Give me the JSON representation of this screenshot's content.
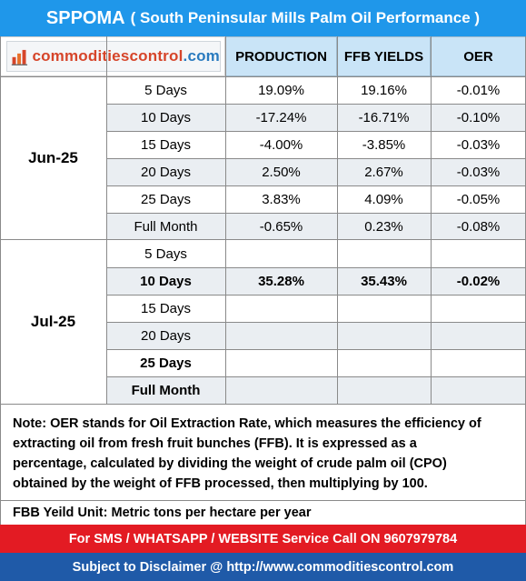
{
  "header": {
    "code": "SPPOMA",
    "subtitle": "( South Peninsular Mills Palm Oil Performance )"
  },
  "logo": {
    "text_a": "commodities",
    "text_b": "control",
    "text_c": ".com"
  },
  "columns": {
    "production": "PRODUCTION",
    "ffb": "FFB YIELDS",
    "oer": "OER"
  },
  "months": [
    {
      "label": "Jun-25",
      "rows": [
        {
          "period": "5 Days",
          "production": "19.09%",
          "ffb": "19.16%",
          "oer": "-0.01%"
        },
        {
          "period": "10 Days",
          "production": "-17.24%",
          "ffb": "-16.71%",
          "oer": "-0.10%"
        },
        {
          "period": "15 Days",
          "production": "-4.00%",
          "ffb": "-3.85%",
          "oer": "-0.03%"
        },
        {
          "period": "20 Days",
          "production": "2.50%",
          "ffb": "2.67%",
          "oer": "-0.03%"
        },
        {
          "period": "25 Days",
          "production": "3.83%",
          "ffb": "4.09%",
          "oer": "-0.05%"
        },
        {
          "period": "Full Month",
          "production": "-0.65%",
          "ffb": "0.23%",
          "oer": "-0.08%"
        }
      ]
    },
    {
      "label": "Jul-25",
      "rows": [
        {
          "period": "5 Days",
          "production": "",
          "ffb": "",
          "oer": ""
        },
        {
          "period": "10 Days",
          "production": "35.28%",
          "ffb": "35.43%",
          "oer": "-0.02%"
        },
        {
          "period": "15 Days",
          "production": "",
          "ffb": "",
          "oer": ""
        },
        {
          "period": "20 Days",
          "production": "",
          "ffb": "",
          "oer": ""
        },
        {
          "period": "25 Days",
          "production": "",
          "ffb": "",
          "oer": ""
        },
        {
          "period": "Full Month",
          "production": "",
          "ffb": "",
          "oer": ""
        }
      ]
    }
  ],
  "note": {
    "line1": "Note: OER stands for Oil Extraction Rate, which measures the efficiency of",
    "line2": "extracting oil from fresh fruit bunches (FFB). It is expressed as a",
    "line3": "percentage, calculated by dividing the weight of crude palm oil (CPO)",
    "line4": "obtained by the weight of FFB processed, then multiplying by 100."
  },
  "unit_note": "FBB Yeild Unit: Metric tons per hectare per year",
  "service": {
    "text": "For SMS / WHATSAPP / WEBSITE Service Call  ON",
    "phone": "9607979784"
  },
  "disclaimer": {
    "text": "Subject to Disclaimer @",
    "url": "http://www.commoditiescontrol.com"
  },
  "colors": {
    "title_bg": "#1f97ea",
    "header_bg": "#c9e4f7",
    "red_bar": "#e31b23",
    "blue_bar": "#1f5aa8"
  }
}
